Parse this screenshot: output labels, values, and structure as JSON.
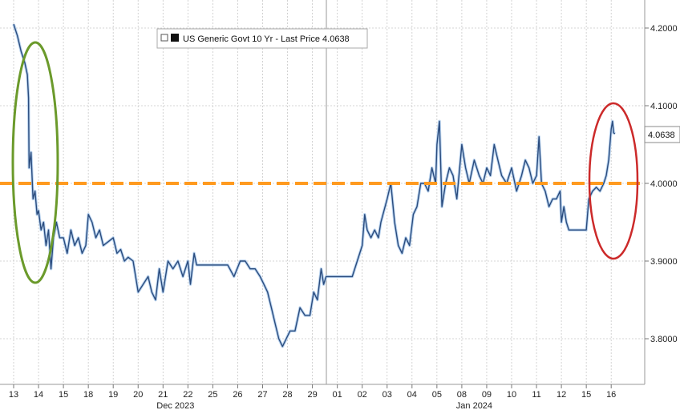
{
  "chart_data": {
    "type": "line",
    "legend": {
      "label": "US Generic Govt 10 Yr - Last Price 4.0638",
      "placement": "top-center"
    },
    "last_price_label": "4.0638",
    "last_price": 4.0638,
    "reference_line": {
      "value": 4.0,
      "color": "#ff9a1f",
      "style": "dashed"
    },
    "ylim": [
      3.74,
      4.23
    ],
    "y_ticks": [
      {
        "value": 3.8,
        "label": "3.8000"
      },
      {
        "value": 3.9,
        "label": "3.9000"
      },
      {
        "value": 4.0,
        "label": "4.0000"
      },
      {
        "value": 4.1,
        "label": "4.1000"
      },
      {
        "value": 4.2,
        "label": "4.2000"
      }
    ],
    "x_day_labels": [
      "13",
      "14",
      "15",
      "18",
      "19",
      "20",
      "21",
      "22",
      "25",
      "26",
      "27",
      "28",
      "29",
      "01",
      "02",
      "03",
      "04",
      "05",
      "08",
      "09",
      "10",
      "11",
      "12",
      "15",
      "16"
    ],
    "x_month_labels": [
      "Dec 2023",
      "Jan 2024"
    ],
    "grid": true,
    "colors": {
      "series": "#2b4c7e",
      "highlight": "#b8d2ee",
      "reference": "#ff9a1f",
      "grid": "#c8c8c8",
      "green_ellipse": "#6b9a2b",
      "red_ellipse": "#cc2a2a"
    },
    "annotations": [
      {
        "type": "ellipse",
        "color": "green",
        "covers_days": [
          "13",
          "14"
        ]
      },
      {
        "type": "ellipse",
        "color": "red",
        "covers_days": [
          "16"
        ]
      }
    ],
    "series": [
      {
        "points": [
          [
            0,
            4.205
          ],
          [
            0.15,
            4.19
          ],
          [
            0.3,
            4.17
          ],
          [
            0.45,
            4.155
          ],
          [
            0.55,
            4.14
          ],
          [
            0.6,
            4.11
          ],
          [
            0.62,
            4.02
          ],
          [
            0.7,
            4.04
          ],
          [
            0.78,
            3.98
          ],
          [
            0.86,
            3.99
          ],
          [
            0.94,
            3.96
          ],
          [
            1.0,
            3.965
          ],
          [
            1.1,
            3.94
          ],
          [
            1.2,
            3.95
          ],
          [
            1.3,
            3.92
          ],
          [
            1.4,
            3.94
          ],
          [
            1.5,
            3.89
          ],
          [
            1.6,
            3.93
          ],
          [
            1.72,
            3.95
          ],
          [
            1.85,
            3.93
          ],
          [
            2.0,
            3.93
          ],
          [
            2.15,
            3.91
          ],
          [
            2.3,
            3.94
          ],
          [
            2.45,
            3.92
          ],
          [
            2.6,
            3.93
          ],
          [
            2.75,
            3.91
          ],
          [
            2.9,
            3.92
          ],
          [
            3.0,
            3.96
          ],
          [
            3.15,
            3.95
          ],
          [
            3.3,
            3.93
          ],
          [
            3.45,
            3.94
          ],
          [
            3.6,
            3.92
          ],
          [
            3.8,
            3.925
          ],
          [
            4.0,
            3.93
          ],
          [
            4.15,
            3.91
          ],
          [
            4.3,
            3.915
          ],
          [
            4.45,
            3.9
          ],
          [
            4.6,
            3.905
          ],
          [
            4.8,
            3.9
          ],
          [
            5.0,
            3.86
          ],
          [
            5.2,
            3.87
          ],
          [
            5.4,
            3.88
          ],
          [
            5.55,
            3.86
          ],
          [
            5.7,
            3.85
          ],
          [
            5.85,
            3.89
          ],
          [
            6.0,
            3.86
          ],
          [
            6.2,
            3.9
          ],
          [
            6.4,
            3.89
          ],
          [
            6.6,
            3.9
          ],
          [
            6.8,
            3.88
          ],
          [
            7.0,
            3.9
          ],
          [
            7.1,
            3.87
          ],
          [
            7.25,
            3.91
          ],
          [
            7.35,
            3.895
          ],
          [
            8.35,
            3.895
          ],
          [
            8.6,
            3.895
          ],
          [
            8.85,
            3.88
          ],
          [
            9.1,
            3.9
          ],
          [
            9.3,
            3.9
          ],
          [
            9.5,
            3.89
          ],
          [
            9.7,
            3.89
          ],
          [
            9.9,
            3.88
          ],
          [
            10.05,
            3.87
          ],
          [
            10.2,
            3.86
          ],
          [
            10.35,
            3.84
          ],
          [
            10.5,
            3.82
          ],
          [
            10.65,
            3.8
          ],
          [
            10.8,
            3.79
          ],
          [
            10.95,
            3.8
          ],
          [
            11.1,
            3.81
          ],
          [
            11.3,
            3.81
          ],
          [
            11.5,
            3.84
          ],
          [
            11.7,
            3.83
          ],
          [
            11.9,
            3.83
          ],
          [
            12.05,
            3.86
          ],
          [
            12.2,
            3.85
          ],
          [
            12.35,
            3.89
          ],
          [
            12.45,
            3.87
          ],
          [
            12.55,
            3.88
          ],
          [
            12.6,
            3.88
          ],
          [
            13.6,
            3.88
          ],
          [
            14.0,
            3.92
          ],
          [
            14.1,
            3.96
          ],
          [
            14.2,
            3.94
          ],
          [
            14.35,
            3.93
          ],
          [
            14.5,
            3.94
          ],
          [
            14.65,
            3.93
          ],
          [
            14.75,
            3.95
          ],
          [
            15.0,
            3.98
          ],
          [
            15.15,
            4.0
          ],
          [
            15.3,
            3.95
          ],
          [
            15.45,
            3.92
          ],
          [
            15.6,
            3.91
          ],
          [
            15.75,
            3.93
          ],
          [
            15.9,
            3.92
          ],
          [
            16.05,
            3.96
          ],
          [
            16.2,
            3.97
          ],
          [
            16.35,
            4.0
          ],
          [
            16.5,
            4.0
          ],
          [
            16.65,
            3.99
          ],
          [
            16.8,
            4.02
          ],
          [
            16.95,
            4.0
          ],
          [
            17.0,
            4.05
          ],
          [
            17.1,
            4.08
          ],
          [
            17.2,
            3.97
          ],
          [
            17.35,
            4.0
          ],
          [
            17.5,
            4.02
          ],
          [
            17.65,
            4.01
          ],
          [
            17.8,
            3.98
          ],
          [
            18.0,
            4.05
          ],
          [
            18.15,
            4.02
          ],
          [
            18.3,
            4.0
          ],
          [
            18.5,
            4.03
          ],
          [
            18.7,
            4.01
          ],
          [
            18.85,
            4.0
          ],
          [
            19.0,
            4.02
          ],
          [
            19.15,
            4.01
          ],
          [
            19.3,
            4.05
          ],
          [
            19.45,
            4.03
          ],
          [
            19.6,
            4.01
          ],
          [
            19.8,
            4.0
          ],
          [
            20.0,
            4.02
          ],
          [
            20.2,
            3.99
          ],
          [
            20.4,
            4.01
          ],
          [
            20.55,
            4.03
          ],
          [
            20.7,
            4.02
          ],
          [
            20.85,
            4.0
          ],
          [
            21.0,
            4.01
          ],
          [
            21.1,
            4.06
          ],
          [
            21.2,
            4.0
          ],
          [
            21.35,
            3.99
          ],
          [
            21.5,
            3.97
          ],
          [
            21.65,
            3.98
          ],
          [
            21.8,
            3.98
          ],
          [
            21.95,
            3.99
          ],
          [
            22.0,
            3.95
          ],
          [
            22.1,
            3.97
          ],
          [
            22.2,
            3.95
          ],
          [
            22.3,
            3.94
          ],
          [
            22.4,
            3.94
          ],
          [
            23.0,
            3.94
          ],
          [
            23.1,
            3.98
          ],
          [
            23.25,
            3.99
          ],
          [
            23.4,
            3.995
          ],
          [
            23.55,
            3.99
          ],
          [
            23.7,
            4.0
          ],
          [
            23.8,
            4.01
          ],
          [
            23.9,
            4.03
          ],
          [
            24.0,
            4.07
          ],
          [
            24.05,
            4.08
          ],
          [
            24.1,
            4.065
          ],
          [
            24.15,
            4.0638
          ]
        ]
      }
    ]
  }
}
